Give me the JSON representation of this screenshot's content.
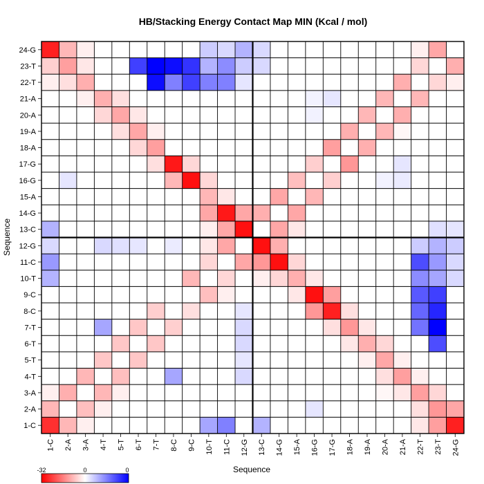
{
  "chart_data": {
    "type": "heatmap",
    "title": "HB/Stacking Energy Contact Map MIN (Kcal / mol)",
    "xlabel": "Sequence",
    "ylabel": "Sequence",
    "labels": [
      "1-C",
      "2-A",
      "3-A",
      "4-T",
      "5-T",
      "6-T",
      "7-T",
      "8-C",
      "9-C",
      "10-T",
      "11-C",
      "12-G",
      "13-C",
      "14-G",
      "15-A",
      "16-G",
      "17-G",
      "18-A",
      "19-A",
      "20-A",
      "21-A",
      "22-T",
      "23-T",
      "24-G"
    ],
    "divider_after": 12,
    "color_scale": {
      "min": -32,
      "mid": 0,
      "max": 0,
      "low_color": "#ff0000",
      "mid_color": "#ffffff",
      "high_color": "#0000ff",
      "tick_labels": [
        "-32",
        "0",
        "0"
      ]
    },
    "cells": [
      {
        "x": 1,
        "y": 1,
        "v": -26
      },
      {
        "x": 2,
        "y": 1,
        "v": -9
      },
      {
        "x": 3,
        "y": 1,
        "v": -2
      },
      {
        "x": 10,
        "y": 1,
        "v": 0.35
      },
      {
        "x": 11,
        "y": 1,
        "v": 0.5
      },
      {
        "x": 13,
        "y": 1,
        "v": 0.3
      },
      {
        "x": 24,
        "y": 1,
        "v": -28
      },
      {
        "x": 23,
        "y": 1,
        "v": -12
      },
      {
        "x": 22,
        "y": 1,
        "v": -3
      },
      {
        "x": 1,
        "y": 2,
        "v": -9
      },
      {
        "x": 3,
        "y": 2,
        "v": -8
      },
      {
        "x": 4,
        "y": 2,
        "v": -2
      },
      {
        "x": 16,
        "y": 2,
        "v": 0.1
      },
      {
        "x": 22,
        "y": 2,
        "v": -4
      },
      {
        "x": 23,
        "y": 2,
        "v": -13
      },
      {
        "x": 24,
        "y": 2,
        "v": -11
      },
      {
        "x": 1,
        "y": 3,
        "v": -2
      },
      {
        "x": 2,
        "y": 3,
        "v": -10
      },
      {
        "x": 4,
        "y": 3,
        "v": -9
      },
      {
        "x": 5,
        "y": 3,
        "v": -2
      },
      {
        "x": 20,
        "y": 3,
        "v": -1
      },
      {
        "x": 21,
        "y": 3,
        "v": -3
      },
      {
        "x": 22,
        "y": 3,
        "v": -12
      },
      {
        "x": 23,
        "y": 3,
        "v": -5
      },
      {
        "x": 3,
        "y": 4,
        "v": -9
      },
      {
        "x": 5,
        "y": 4,
        "v": -8
      },
      {
        "x": 8,
        "y": 4,
        "v": 0.35
      },
      {
        "x": 12,
        "y": 4,
        "v": 0.15
      },
      {
        "x": 20,
        "y": 4,
        "v": -4
      },
      {
        "x": 21,
        "y": 4,
        "v": -12
      },
      {
        "x": 22,
        "y": 4,
        "v": -2
      },
      {
        "x": 4,
        "y": 5,
        "v": -7
      },
      {
        "x": 6,
        "y": 5,
        "v": -7
      },
      {
        "x": 12,
        "y": 5,
        "v": 0.1
      },
      {
        "x": 19,
        "y": 5,
        "v": -2
      },
      {
        "x": 20,
        "y": 5,
        "v": -11
      },
      {
        "x": 21,
        "y": 5,
        "v": -2
      },
      {
        "x": 5,
        "y": 6,
        "v": -7
      },
      {
        "x": 7,
        "y": 6,
        "v": -7
      },
      {
        "x": 12,
        "y": 6,
        "v": 0.15
      },
      {
        "x": 18,
        "y": 6,
        "v": -3
      },
      {
        "x": 19,
        "y": 6,
        "v": -10
      },
      {
        "x": 20,
        "y": 6,
        "v": -5
      },
      {
        "x": 23,
        "y": 6,
        "v": 0.7
      },
      {
        "x": 4,
        "y": 7,
        "v": 0.35
      },
      {
        "x": 6,
        "y": 7,
        "v": -7
      },
      {
        "x": 8,
        "y": 7,
        "v": -6
      },
      {
        "x": 12,
        "y": 7,
        "v": 0.15
      },
      {
        "x": 17,
        "y": 7,
        "v": -4
      },
      {
        "x": 18,
        "y": 7,
        "v": -13
      },
      {
        "x": 19,
        "y": 7,
        "v": -3
      },
      {
        "x": 22,
        "y": 7,
        "v": 0.55
      },
      {
        "x": 23,
        "y": 7,
        "v": 1
      },
      {
        "x": 7,
        "y": 8,
        "v": -6
      },
      {
        "x": 9,
        "y": 8,
        "v": -4
      },
      {
        "x": 12,
        "y": 8,
        "v": 0.1
      },
      {
        "x": 16,
        "y": 8,
        "v": -13
      },
      {
        "x": 17,
        "y": 8,
        "v": -28
      },
      {
        "x": 18,
        "y": 8,
        "v": -4
      },
      {
        "x": 22,
        "y": 8,
        "v": 0.6
      },
      {
        "x": 23,
        "y": 8,
        "v": 0.85
      },
      {
        "x": 10,
        "y": 9,
        "v": -8
      },
      {
        "x": 11,
        "y": 9,
        "v": -2
      },
      {
        "x": 15,
        "y": 9,
        "v": -3
      },
      {
        "x": 16,
        "y": 9,
        "v": -30
      },
      {
        "x": 17,
        "y": 9,
        "v": -12
      },
      {
        "x": 22,
        "y": 9,
        "v": 0.65
      },
      {
        "x": 23,
        "y": 9,
        "v": 0.75
      },
      {
        "x": 1,
        "y": 10,
        "v": 0.3
      },
      {
        "x": 9,
        "y": 10,
        "v": -9
      },
      {
        "x": 11,
        "y": 10,
        "v": -5
      },
      {
        "x": 13,
        "y": 10,
        "v": -2
      },
      {
        "x": 14,
        "y": 10,
        "v": -5
      },
      {
        "x": 15,
        "y": 10,
        "v": -10
      },
      {
        "x": 16,
        "y": 10,
        "v": -3
      },
      {
        "x": 22,
        "y": 10,
        "v": 0.45
      },
      {
        "x": 23,
        "y": 10,
        "v": 0.35
      },
      {
        "x": 24,
        "y": 10,
        "v": 0.15
      },
      {
        "x": 1,
        "y": 11,
        "v": 0.4
      },
      {
        "x": 10,
        "y": 11,
        "v": -5
      },
      {
        "x": 12,
        "y": 11,
        "v": -11
      },
      {
        "x": 13,
        "y": 11,
        "v": -13
      },
      {
        "x": 14,
        "y": 11,
        "v": -30
      },
      {
        "x": 15,
        "y": 11,
        "v": -5
      },
      {
        "x": 22,
        "y": 11,
        "v": 0.7
      },
      {
        "x": 23,
        "y": 11,
        "v": 0.4
      },
      {
        "x": 24,
        "y": 11,
        "v": 0.15
      },
      {
        "x": 1,
        "y": 12,
        "v": 0.15
      },
      {
        "x": 4,
        "y": 12,
        "v": 0.15
      },
      {
        "x": 5,
        "y": 12,
        "v": 0.12
      },
      {
        "x": 6,
        "y": 12,
        "v": 0.1
      },
      {
        "x": 8,
        "y": 12,
        "v": 0.08
      },
      {
        "x": 10,
        "y": 12,
        "v": -3
      },
      {
        "x": 11,
        "y": 12,
        "v": -11
      },
      {
        "x": 13,
        "y": 12,
        "v": -30
      },
      {
        "x": 14,
        "y": 12,
        "v": -10
      },
      {
        "x": 22,
        "y": 12,
        "v": 0.2
      },
      {
        "x": 23,
        "y": 12,
        "v": 0.3
      },
      {
        "x": 24,
        "y": 12,
        "v": 0.2
      },
      {
        "x": 1,
        "y": 13,
        "v": 0.3
      },
      {
        "x": 10,
        "y": 13,
        "v": -2
      },
      {
        "x": 11,
        "y": 13,
        "v": -11
      },
      {
        "x": 12,
        "y": 13,
        "v": -30
      },
      {
        "x": 14,
        "y": 13,
        "v": -11
      },
      {
        "x": 15,
        "y": 13,
        "v": -3
      },
      {
        "x": 23,
        "y": 13,
        "v": 0.12
      },
      {
        "x": 24,
        "y": 13,
        "v": 0.1
      },
      {
        "x": 10,
        "y": 14,
        "v": -11
      },
      {
        "x": 11,
        "y": 14,
        "v": -29
      },
      {
        "x": 12,
        "y": 14,
        "v": -11
      },
      {
        "x": 13,
        "y": 14,
        "v": -10
      },
      {
        "x": 15,
        "y": 14,
        "v": -11
      },
      {
        "x": 10,
        "y": 15,
        "v": -9
      },
      {
        "x": 11,
        "y": 15,
        "v": -3
      },
      {
        "x": 14,
        "y": 15,
        "v": -11
      },
      {
        "x": 16,
        "y": 15,
        "v": -9
      },
      {
        "x": 2,
        "y": 16,
        "v": 0.1
      },
      {
        "x": 8,
        "y": 16,
        "v": -9
      },
      {
        "x": 9,
        "y": 16,
        "v": -30
      },
      {
        "x": 10,
        "y": 16,
        "v": -5
      },
      {
        "x": 15,
        "y": 16,
        "v": -8
      },
      {
        "x": 17,
        "y": 16,
        "v": -6
      },
      {
        "x": 20,
        "y": 16,
        "v": 0.05
      },
      {
        "x": 21,
        "y": 16,
        "v": 0.08
      },
      {
        "x": 7,
        "y": 17,
        "v": -4
      },
      {
        "x": 8,
        "y": 17,
        "v": -29
      },
      {
        "x": 9,
        "y": 17,
        "v": -5
      },
      {
        "x": 16,
        "y": 17,
        "v": -6
      },
      {
        "x": 18,
        "y": 17,
        "v": -13
      },
      {
        "x": 21,
        "y": 17,
        "v": 0.1
      },
      {
        "x": 6,
        "y": 18,
        "v": -5
      },
      {
        "x": 7,
        "y": 18,
        "v": -12
      },
      {
        "x": 17,
        "y": 18,
        "v": -12
      },
      {
        "x": 19,
        "y": 18,
        "v": -10
      },
      {
        "x": 5,
        "y": 19,
        "v": -4
      },
      {
        "x": 6,
        "y": 19,
        "v": -11
      },
      {
        "x": 7,
        "y": 19,
        "v": -2
      },
      {
        "x": 18,
        "y": 19,
        "v": -10
      },
      {
        "x": 20,
        "y": 19,
        "v": -9
      },
      {
        "x": 21,
        "y": 19,
        "v": -1
      },
      {
        "x": 4,
        "y": 20,
        "v": -5
      },
      {
        "x": 5,
        "y": 20,
        "v": -11
      },
      {
        "x": 6,
        "y": 20,
        "v": -3
      },
      {
        "x": 16,
        "y": 20,
        "v": 0.05
      },
      {
        "x": 19,
        "y": 20,
        "v": -9
      },
      {
        "x": 21,
        "y": 20,
        "v": -10
      },
      {
        "x": 3,
        "y": 21,
        "v": -2
      },
      {
        "x": 4,
        "y": 21,
        "v": -10
      },
      {
        "x": 5,
        "y": 21,
        "v": -4
      },
      {
        "x": 16,
        "y": 21,
        "v": 0.05
      },
      {
        "x": 17,
        "y": 21,
        "v": 0.1
      },
      {
        "x": 20,
        "y": 21,
        "v": -9
      },
      {
        "x": 22,
        "y": 21,
        "v": -9
      },
      {
        "x": 1,
        "y": 22,
        "v": -2
      },
      {
        "x": 2,
        "y": 22,
        "v": -4
      },
      {
        "x": 3,
        "y": 22,
        "v": -10
      },
      {
        "x": 7,
        "y": 22,
        "v": 0.95
      },
      {
        "x": 8,
        "y": 22,
        "v": 0.5
      },
      {
        "x": 9,
        "y": 22,
        "v": 0.75
      },
      {
        "x": 10,
        "y": 22,
        "v": 0.5
      },
      {
        "x": 11,
        "y": 22,
        "v": 0.5
      },
      {
        "x": 12,
        "y": 22,
        "v": 0.1
      },
      {
        "x": 21,
        "y": 22,
        "v": -10
      },
      {
        "x": 23,
        "y": 22,
        "v": -5
      },
      {
        "x": 24,
        "y": 22,
        "v": -2
      },
      {
        "x": 1,
        "y": 23,
        "v": -6
      },
      {
        "x": 2,
        "y": 23,
        "v": -12
      },
      {
        "x": 3,
        "y": 23,
        "v": -3
      },
      {
        "x": 6,
        "y": 23,
        "v": 0.75
      },
      {
        "x": 7,
        "y": 23,
        "v": 1
      },
      {
        "x": 8,
        "y": 23,
        "v": 0.95
      },
      {
        "x": 9,
        "y": 23,
        "v": 0.8
      },
      {
        "x": 10,
        "y": 23,
        "v": 0.3
      },
      {
        "x": 11,
        "y": 23,
        "v": 0.45
      },
      {
        "x": 12,
        "y": 23,
        "v": 0.2
      },
      {
        "x": 13,
        "y": 23,
        "v": 0.15
      },
      {
        "x": 22,
        "y": 23,
        "v": -5
      },
      {
        "x": 24,
        "y": 23,
        "v": -10
      },
      {
        "x": 1,
        "y": 24,
        "v": -28
      },
      {
        "x": 2,
        "y": 24,
        "v": -9
      },
      {
        "x": 3,
        "y": 24,
        "v": -2
      },
      {
        "x": 10,
        "y": 24,
        "v": 0.2
      },
      {
        "x": 11,
        "y": 24,
        "v": 0.15
      },
      {
        "x": 12,
        "y": 24,
        "v": 0.3
      },
      {
        "x": 13,
        "y": 24,
        "v": 0.15
      },
      {
        "x": 22,
        "y": 24,
        "v": -2
      },
      {
        "x": 23,
        "y": 24,
        "v": -11
      }
    ]
  }
}
